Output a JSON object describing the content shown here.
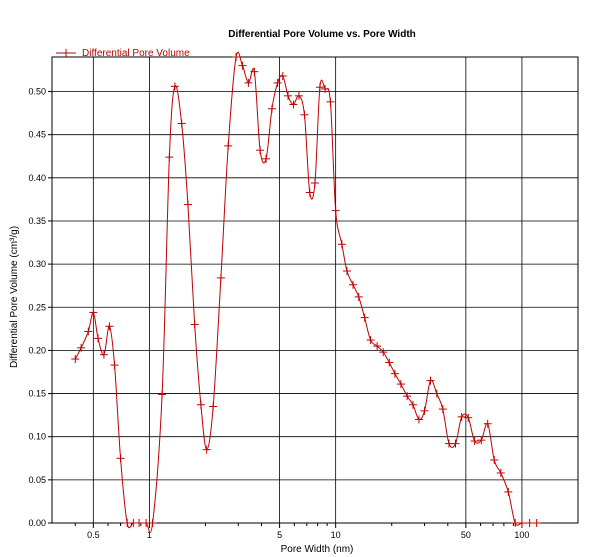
{
  "chart_data": {
    "type": "line",
    "title": "Differential Pore Volume vs. Pore Width",
    "xlabel": "Pore Width (nm)",
    "ylabel": "Differential Pore Volume (cm³/g)",
    "x_scale": "log",
    "xlim": [
      0.3,
      200
    ],
    "ylim": [
      0,
      0.54
    ],
    "grid": true,
    "legend_position": "top-left",
    "x_ticks": [
      {
        "value": 0.5,
        "label": "0.5"
      },
      {
        "value": 1,
        "label": "1"
      },
      {
        "value": 5,
        "label": "5"
      },
      {
        "value": 10,
        "label": "10"
      },
      {
        "value": 50,
        "label": "50"
      },
      {
        "value": 100,
        "label": "100"
      }
    ],
    "x_minor_ticks": [
      0.4,
      0.6,
      0.7,
      0.8,
      0.9,
      2,
      3,
      4,
      6,
      7,
      8,
      9,
      20,
      30,
      40,
      60,
      70,
      80,
      90
    ],
    "y_ticks": [
      {
        "value": 0,
        "label": "0.00"
      },
      {
        "value": 0.05,
        "label": "0.05"
      },
      {
        "value": 0.1,
        "label": "0.10"
      },
      {
        "value": 0.15,
        "label": "0.15"
      },
      {
        "value": 0.2,
        "label": "0.20"
      },
      {
        "value": 0.25,
        "label": "0.25"
      },
      {
        "value": 0.3,
        "label": "0.30"
      },
      {
        "value": 0.35,
        "label": "0.35"
      },
      {
        "value": 0.4,
        "label": "0.40"
      },
      {
        "value": 0.45,
        "label": "0.45"
      },
      {
        "value": 0.5,
        "label": "0.50"
      }
    ],
    "series": [
      {
        "name": "Differential Pore Volume",
        "color": "#c00000",
        "marker": "plus",
        "points": [
          [
            0.4,
            0.19
          ],
          [
            0.43,
            0.203
          ],
          [
            0.47,
            0.222
          ],
          [
            0.5,
            0.244
          ],
          [
            0.53,
            0.214
          ],
          [
            0.57,
            0.195
          ],
          [
            0.61,
            0.228
          ],
          [
            0.65,
            0.183
          ],
          [
            0.7,
            0.075
          ],
          [
            0.76,
            0.0
          ],
          [
            0.82,
            0.0
          ],
          [
            0.88,
            0.0
          ],
          [
            0.96,
            0.0
          ],
          [
            1.04,
            0.0
          ],
          [
            1.17,
            0.149
          ],
          [
            1.28,
            0.424
          ],
          [
            1.37,
            0.506
          ],
          [
            1.49,
            0.463
          ],
          [
            1.61,
            0.369
          ],
          [
            1.75,
            0.23
          ],
          [
            1.89,
            0.137
          ],
          [
            2.03,
            0.085
          ],
          [
            2.2,
            0.135
          ],
          [
            2.42,
            0.284
          ],
          [
            2.65,
            0.437
          ],
          [
            2.92,
            0.54
          ],
          [
            3.16,
            0.53
          ],
          [
            3.4,
            0.51
          ],
          [
            3.66,
            0.523
          ],
          [
            3.93,
            0.432
          ],
          [
            4.23,
            0.422
          ],
          [
            4.55,
            0.48
          ],
          [
            4.88,
            0.51
          ],
          [
            5.2,
            0.518
          ],
          [
            5.55,
            0.495
          ],
          [
            5.93,
            0.485
          ],
          [
            6.35,
            0.495
          ],
          [
            6.8,
            0.473
          ],
          [
            7.26,
            0.383
          ],
          [
            7.74,
            0.394
          ],
          [
            8.23,
            0.505
          ],
          [
            8.77,
            0.503
          ],
          [
            9.37,
            0.488
          ],
          [
            10.0,
            0.362
          ],
          [
            10.8,
            0.323
          ],
          [
            11.5,
            0.292
          ],
          [
            12.4,
            0.276
          ],
          [
            13.3,
            0.262
          ],
          [
            14.3,
            0.238
          ],
          [
            15.4,
            0.212
          ],
          [
            16.7,
            0.205
          ],
          [
            18.0,
            0.198
          ],
          [
            19.4,
            0.186
          ],
          [
            20.8,
            0.173
          ],
          [
            22.4,
            0.161
          ],
          [
            24.2,
            0.147
          ],
          [
            26.0,
            0.137
          ],
          [
            28.0,
            0.12
          ],
          [
            30.0,
            0.13
          ],
          [
            32.3,
            0.165
          ],
          [
            34.9,
            0.15
          ],
          [
            37.6,
            0.132
          ],
          [
            40.6,
            0.092
          ],
          [
            44.0,
            0.092
          ],
          [
            47.5,
            0.123
          ],
          [
            51.5,
            0.122
          ],
          [
            55.7,
            0.095
          ],
          [
            60.5,
            0.096
          ],
          [
            65.5,
            0.115
          ],
          [
            71.0,
            0.073
          ],
          [
            77.0,
            0.058
          ],
          [
            84.5,
            0.036
          ],
          [
            92.0,
            0.0
          ],
          [
            100.0,
            0.0
          ],
          [
            110.0,
            0.0
          ],
          [
            120.0,
            0.0
          ]
        ]
      }
    ]
  }
}
